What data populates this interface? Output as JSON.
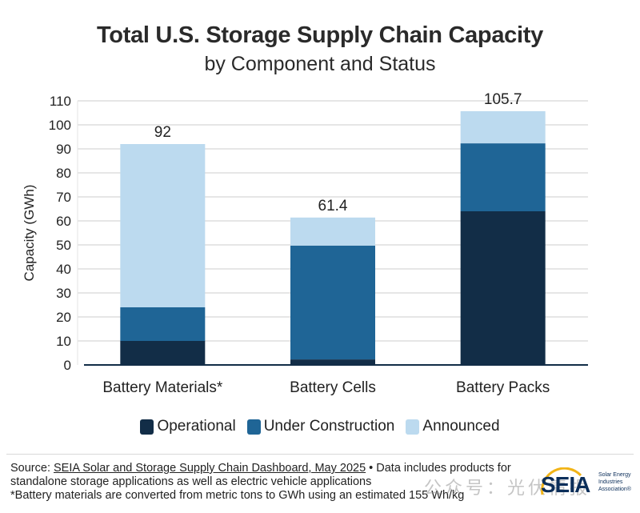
{
  "chart_data": {
    "type": "bar",
    "stacked": true,
    "title": "Total U.S. Storage Supply Chain Capacity",
    "subtitle": "by Component and Status",
    "xlabel": "",
    "ylabel": "Capacity (GWh)",
    "ylim": [
      0,
      110
    ],
    "yticks": [
      0,
      10,
      20,
      30,
      40,
      50,
      60,
      70,
      80,
      90,
      100,
      110
    ],
    "grid": true,
    "legend_position": "bottom",
    "categories": [
      "Battery Materials*",
      "Battery Cells",
      "Battery Packs"
    ],
    "series": [
      {
        "name": "Operational",
        "color": "#122d47",
        "values": [
          10,
          2.3,
          64
        ]
      },
      {
        "name": "Under Construction",
        "color": "#1f6596",
        "values": [
          14,
          47.4,
          28.3
        ]
      },
      {
        "name": "Announced",
        "color": "#bcdaef",
        "values": [
          68,
          11.7,
          13.4
        ]
      }
    ],
    "totals": [
      92,
      61.4,
      105.7
    ],
    "total_labels": [
      "92",
      "61.4",
      "105.7"
    ]
  },
  "footer": {
    "source_prefix": "Source: ",
    "source_link": "SEIA Solar and Storage Supply Chain Dashboard, May 2025",
    "source_suffix": " • Data includes products for standalone storage applications as well as electric vehicle applications",
    "note": "*Battery materials are converted from metric tons to GWh using an estimated 155 Wh/kg"
  },
  "logo": {
    "name": "SEIA",
    "tagline": "Solar Energy Industries Association®"
  },
  "watermark": "公众号：光伏情报"
}
